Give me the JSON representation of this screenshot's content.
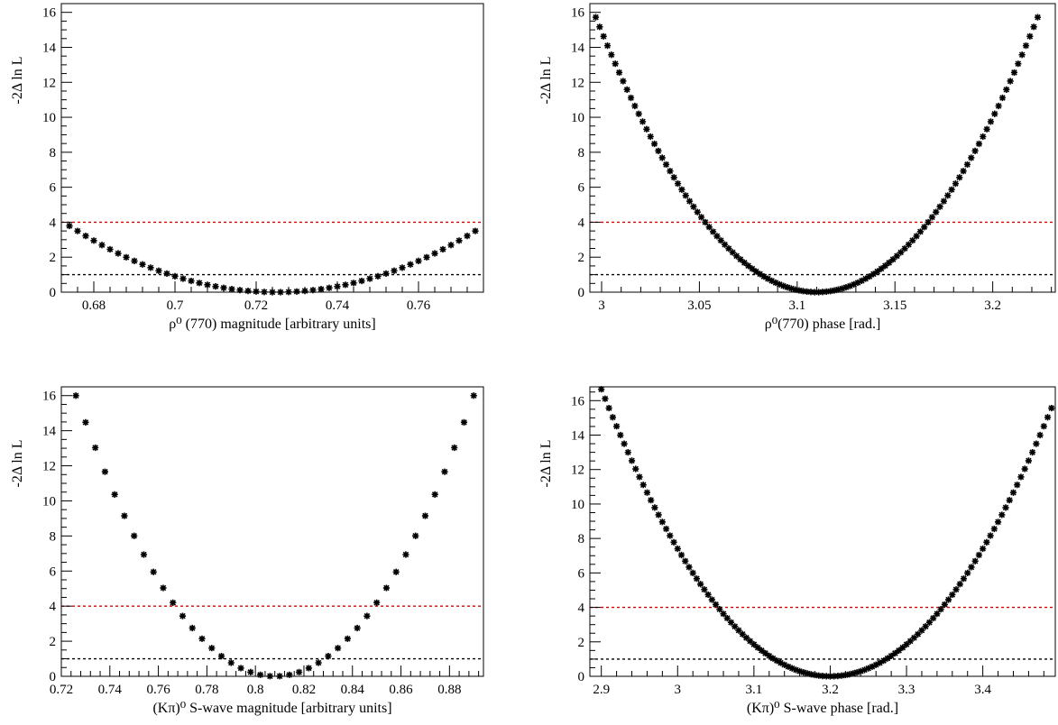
{
  "chart_data": [
    {
      "type": "scatter",
      "xlabel": "ρ⁰ (770) magnitude [arbitrary units]",
      "ylabel": "-2Δ ln L",
      "xlim": [
        0.672,
        0.776
      ],
      "ylim": [
        0,
        16.5
      ],
      "xticks": [
        0.68,
        0.7,
        0.72,
        0.74,
        0.76
      ],
      "xtick_labels": [
        "0.68",
        "0.7",
        "0.72",
        "0.74",
        "0.76"
      ],
      "yticks": [
        0,
        2,
        4,
        6,
        8,
        10,
        12,
        14,
        16
      ],
      "ytick_labels": [
        "0",
        "2",
        "4",
        "6",
        "8",
        "10",
        "12",
        "14",
        "16"
      ],
      "reference_lines": [
        {
          "y": 4,
          "color": "#dd0000",
          "style": "dashed"
        },
        {
          "y": 1,
          "color": "#000000",
          "style": "dashed"
        }
      ],
      "marker": "asterisk",
      "parabola": {
        "center": 0.725,
        "one_sigma": 0.0262
      },
      "x": [
        0.674,
        0.676,
        0.678,
        0.68,
        0.682,
        0.684,
        0.686,
        0.688,
        0.69,
        0.692,
        0.694,
        0.696,
        0.698,
        0.7,
        0.702,
        0.704,
        0.706,
        0.708,
        0.71,
        0.712,
        0.714,
        0.716,
        0.718,
        0.72,
        0.722,
        0.724,
        0.726,
        0.728,
        0.73,
        0.732,
        0.734,
        0.736,
        0.738,
        0.74,
        0.742,
        0.744,
        0.746,
        0.748,
        0.75,
        0.752,
        0.754,
        0.756,
        0.758,
        0.76,
        0.762,
        0.764,
        0.766,
        0.768,
        0.77,
        0.772,
        0.774
      ]
    },
    {
      "type": "scatter",
      "xlabel": "ρ⁰(770) phase [rad.]",
      "ylabel": "-2Δ ln L",
      "xlim": [
        2.994,
        3.232
      ],
      "ylim": [
        0,
        16.5
      ],
      "xticks": [
        3.0,
        3.05,
        3.1,
        3.15,
        3.2
      ],
      "xtick_labels": [
        "3",
        "3.05",
        "3.1",
        "3.15",
        "3.2"
      ],
      "yticks": [
        0,
        2,
        4,
        6,
        8,
        10,
        12,
        14,
        16
      ],
      "ytick_labels": [
        "0",
        "2",
        "4",
        "6",
        "8",
        "10",
        "12",
        "14",
        "16"
      ],
      "reference_lines": [
        {
          "y": 4,
          "color": "#dd0000",
          "style": "dashed"
        },
        {
          "y": 1,
          "color": "#000000",
          "style": "dashed"
        }
      ],
      "marker": "asterisk",
      "parabola": {
        "center": 3.11,
        "one_sigma": 0.0285
      },
      "x_range": [
        2.997,
        3.223
      ],
      "x_step": 0.002
    },
    {
      "type": "scatter",
      "xlabel": "(Kπ)⁰  S-wave magnitude [arbitrary units]",
      "ylabel": "-2Δ ln L",
      "xlim": [
        0.72,
        0.894
      ],
      "ylim": [
        0,
        16.5
      ],
      "xticks": [
        0.72,
        0.74,
        0.76,
        0.78,
        0.8,
        0.82,
        0.84,
        0.86,
        0.88
      ],
      "xtick_labels": [
        "0.72",
        "0.74",
        "0.76",
        "0.78",
        "0.8",
        "0.82",
        "0.84",
        "0.86",
        "0.88"
      ],
      "yticks": [
        0,
        2,
        4,
        6,
        8,
        10,
        12,
        14,
        16
      ],
      "ytick_labels": [
        "0",
        "2",
        "4",
        "6",
        "8",
        "10",
        "12",
        "14",
        "16"
      ],
      "reference_lines": [
        {
          "y": 4,
          "color": "#dd0000",
          "style": "dashed"
        },
        {
          "y": 1,
          "color": "#000000",
          "style": "dashed"
        }
      ],
      "marker": "asterisk",
      "parabola": {
        "center": 0.808,
        "one_sigma": 0.0205
      },
      "x": [
        0.722,
        0.726,
        0.73,
        0.734,
        0.738,
        0.742,
        0.746,
        0.75,
        0.754,
        0.758,
        0.762,
        0.766,
        0.77,
        0.774,
        0.778,
        0.782,
        0.786,
        0.79,
        0.794,
        0.798,
        0.802,
        0.806,
        0.81,
        0.814,
        0.818,
        0.822,
        0.826,
        0.83,
        0.834,
        0.838,
        0.842,
        0.846,
        0.85,
        0.854,
        0.858,
        0.862,
        0.866,
        0.87,
        0.874,
        0.878,
        0.882,
        0.886,
        0.89
      ]
    },
    {
      "type": "scatter",
      "xlabel": "(Kπ)⁰ S-wave phase [rad.]",
      "ylabel": "-2Δ ln L",
      "xlim": [
        2.885,
        3.495
      ],
      "ylim": [
        0,
        16.8
      ],
      "xticks": [
        2.9,
        3.0,
        3.1,
        3.2,
        3.3,
        3.4
      ],
      "xtick_labels": [
        "2.9",
        "3",
        "3.1",
        "3.2",
        "3.3",
        "3.4"
      ],
      "yticks": [
        0,
        2,
        4,
        6,
        8,
        10,
        12,
        14,
        16
      ],
      "ytick_labels": [
        "0",
        "2",
        "4",
        "6",
        "8",
        "10",
        "12",
        "14",
        "16"
      ],
      "reference_lines": [
        {
          "y": 4,
          "color": "#dd0000",
          "style": "dashed"
        },
        {
          "y": 1,
          "color": "#000000",
          "style": "dashed"
        }
      ],
      "marker": "asterisk",
      "parabola": {
        "center": 3.2,
        "one_sigma": 0.0735
      },
      "x_range": [
        2.9,
        3.492
      ],
      "x_step": 0.005
    }
  ]
}
